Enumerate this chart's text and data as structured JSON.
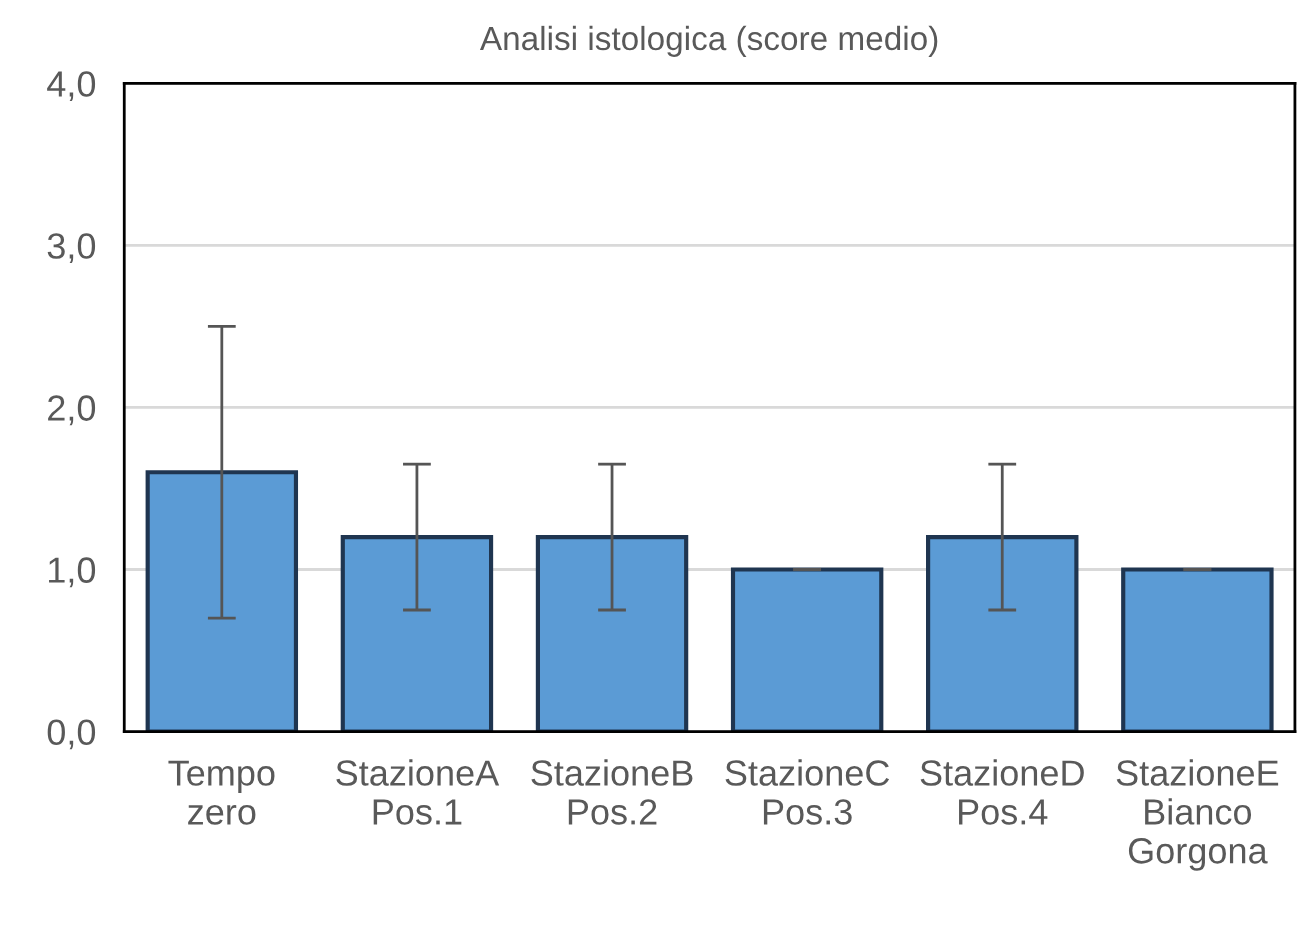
{
  "chart_data": {
    "type": "bar",
    "title": "Analisi istologica (score medio)",
    "categories": [
      "Tempo\nzero",
      "StazioneA\nPos.1",
      "StazioneB\nPos.2",
      "StazioneC\nPos.3",
      "StazioneD\nPos.4",
      "StazioneE\nBianco\nGorgona"
    ],
    "values": [
      1.6,
      1.2,
      1.2,
      1.0,
      1.2,
      1.0
    ],
    "errors": [
      [
        0.7,
        2.5
      ],
      [
        0.75,
        1.65
      ],
      [
        0.75,
        1.65
      ],
      0,
      [
        0.75,
        1.65
      ],
      0
    ],
    "color": "#5b9bd5",
    "ylim": [
      0,
      4
    ],
    "yticks": [
      {
        "value": 0,
        "label": "0,0"
      },
      {
        "value": 1,
        "label": "1,0"
      },
      {
        "value": 2,
        "label": "2,0"
      },
      {
        "value": 3,
        "label": "3,0"
      },
      {
        "value": 4,
        "label": "4,0"
      }
    ],
    "grid": "y"
  }
}
